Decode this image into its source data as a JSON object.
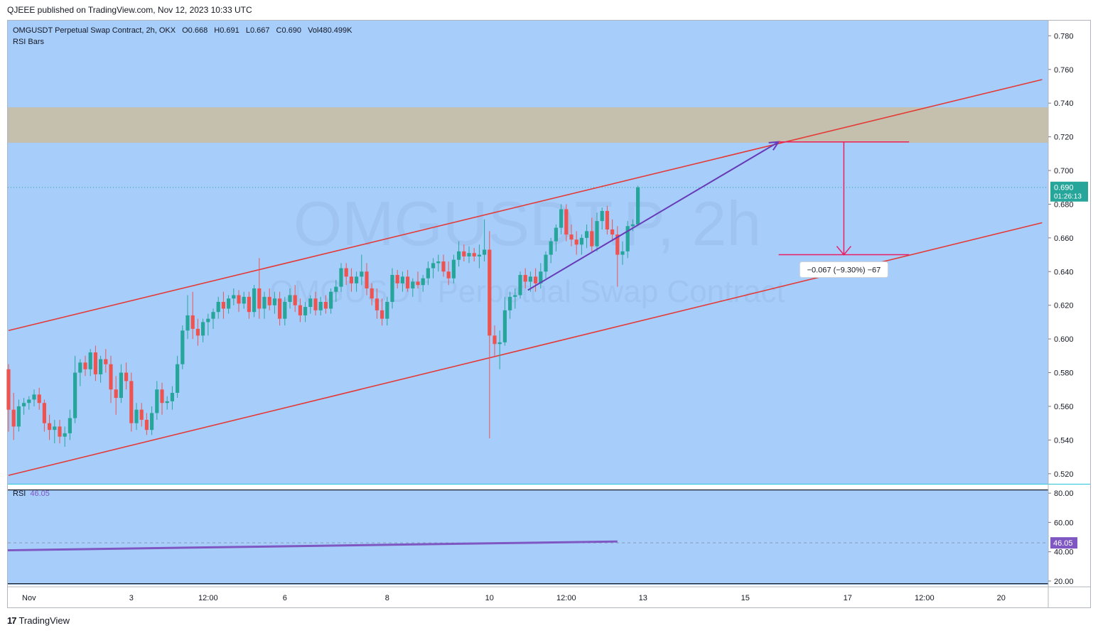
{
  "header": {
    "published": "QJEEE published on TradingView.com, Nov 12, 2023 10:33 UTC"
  },
  "legend": {
    "symbol": "OMGUSDT Perpetual Swap Contract, 2h, OKX",
    "open": "O0.668",
    "high": "H0.691",
    "low": "L0.667",
    "close": "C0.690",
    "volume": "Vol480.499K",
    "indicator": "RSI Bars"
  },
  "watermark": {
    "line1": "OMGUSDT.P, 2h",
    "line2": "OMGUSDT Perpetual Swap Contract"
  },
  "price_badge": {
    "price": "0.690",
    "countdown": "01:26:13"
  },
  "measure_label": "−0.067 (−9.30%) −67",
  "rsi": {
    "label": "RSI",
    "value": "46.05",
    "badge": "46.05"
  },
  "footer": {
    "brand": "TradingView"
  },
  "colors": {
    "background": "#a7cdfb",
    "zone": "#c5bfad",
    "up": "#26a69a",
    "down": "#ef5350",
    "channel": "#e53935",
    "arrow": "#673ab7",
    "measure": "#e91e63",
    "rsi": "#7e57c2"
  },
  "chart_data": {
    "type": "candlestick",
    "price_axis": {
      "ticks": [
        "0.780",
        "0.760",
        "0.740",
        "0.720",
        "0.700",
        "0.680",
        "0.660",
        "0.640",
        "0.620",
        "0.600",
        "0.580",
        "0.560",
        "0.540",
        "0.520"
      ],
      "range": [
        0.514,
        0.789
      ]
    },
    "rsi_axis": {
      "ticks": [
        "80.00",
        "60.00",
        "40.00",
        "20.00"
      ],
      "range": [
        18,
        82
      ]
    },
    "time_axis": {
      "ticks": [
        {
          "label": "Nov",
          "i": 4
        },
        {
          "label": "3",
          "i": 24
        },
        {
          "label": "12:00",
          "i": 39
        },
        {
          "label": "6",
          "i": 54
        },
        {
          "label": "8",
          "i": 74
        },
        {
          "label": "10",
          "i": 94
        },
        {
          "label": "12:00",
          "i": 109
        },
        {
          "label": "13",
          "i": 124
        },
        {
          "label": "15",
          "i": 144
        },
        {
          "label": "17",
          "i": 164
        },
        {
          "label": "12:00",
          "i": 179
        },
        {
          "label": "20",
          "i": 194
        }
      ]
    },
    "supply_zone": [
      0.7165,
      0.7375
    ],
    "last_price": 0.69,
    "channel_upper": [
      [
        0,
        0.605
      ],
      [
        202,
        0.754
      ]
    ],
    "channel_lower": [
      [
        0,
        0.519
      ],
      [
        202,
        0.669
      ]
    ],
    "rising_arrow": [
      [
        101.5,
        0.629
      ],
      [
        150.5,
        0.717
      ]
    ],
    "measure": {
      "start": [
        150.5,
        0.717
      ],
      "end": [
        150.5,
        0.65
      ],
      "x_to": 176
    },
    "rsi_line": [
      [
        0,
        41.0
      ],
      [
        119,
        47.0
      ]
    ],
    "rsi_last": 46.05,
    "candles": [
      [
        0.582,
        0.585,
        0.545,
        0.558
      ],
      [
        0.558,
        0.568,
        0.54,
        0.548
      ],
      [
        0.548,
        0.564,
        0.545,
        0.56
      ],
      [
        0.56,
        0.565,
        0.555,
        0.562
      ],
      [
        0.562,
        0.566,
        0.558,
        0.564
      ],
      [
        0.564,
        0.57,
        0.56,
        0.567
      ],
      [
        0.567,
        0.571,
        0.558,
        0.562
      ],
      [
        0.562,
        0.564,
        0.545,
        0.55
      ],
      [
        0.55,
        0.555,
        0.54,
        0.546
      ],
      [
        0.546,
        0.552,
        0.538,
        0.548
      ],
      [
        0.548,
        0.552,
        0.538,
        0.542
      ],
      [
        0.542,
        0.548,
        0.536,
        0.544
      ],
      [
        0.544,
        0.558,
        0.54,
        0.553
      ],
      [
        0.553,
        0.59,
        0.55,
        0.58
      ],
      [
        0.58,
        0.588,
        0.572,
        0.586
      ],
      [
        0.586,
        0.59,
        0.578,
        0.582
      ],
      [
        0.582,
        0.594,
        0.578,
        0.592
      ],
      [
        0.592,
        0.596,
        0.575,
        0.579
      ],
      [
        0.579,
        0.59,
        0.574,
        0.588
      ],
      [
        0.588,
        0.594,
        0.58,
        0.585
      ],
      [
        0.585,
        0.59,
        0.562,
        0.57
      ],
      [
        0.57,
        0.578,
        0.555,
        0.565
      ],
      [
        0.565,
        0.585,
        0.562,
        0.58
      ],
      [
        0.58,
        0.586,
        0.57,
        0.575
      ],
      [
        0.575,
        0.58,
        0.545,
        0.55
      ],
      [
        0.55,
        0.562,
        0.546,
        0.558
      ],
      [
        0.558,
        0.562,
        0.548,
        0.552
      ],
      [
        0.552,
        0.556,
        0.543,
        0.546
      ],
      [
        0.546,
        0.56,
        0.543,
        0.556
      ],
      [
        0.556,
        0.575,
        0.552,
        0.57
      ],
      [
        0.57,
        0.574,
        0.555,
        0.562
      ],
      [
        0.562,
        0.566,
        0.558,
        0.563
      ],
      [
        0.563,
        0.572,
        0.558,
        0.568
      ],
      [
        0.568,
        0.59,
        0.565,
        0.585
      ],
      [
        0.585,
        0.608,
        0.582,
        0.605
      ],
      [
        0.605,
        0.626,
        0.6,
        0.614
      ],
      [
        0.614,
        0.628,
        0.6,
        0.606
      ],
      [
        0.606,
        0.612,
        0.596,
        0.602
      ],
      [
        0.602,
        0.612,
        0.598,
        0.61
      ],
      [
        0.61,
        0.615,
        0.602,
        0.612
      ],
      [
        0.612,
        0.618,
        0.606,
        0.616
      ],
      [
        0.616,
        0.625,
        0.612,
        0.622
      ],
      [
        0.622,
        0.628,
        0.612,
        0.618
      ],
      [
        0.618,
        0.626,
        0.615,
        0.624
      ],
      [
        0.624,
        0.63,
        0.62,
        0.626
      ],
      [
        0.626,
        0.629,
        0.616,
        0.621
      ],
      [
        0.621,
        0.628,
        0.618,
        0.625
      ],
      [
        0.625,
        0.628,
        0.612,
        0.616
      ],
      [
        0.616,
        0.632,
        0.613,
        0.63
      ],
      [
        0.63,
        0.648,
        0.612,
        0.618
      ],
      [
        0.618,
        0.628,
        0.612,
        0.625
      ],
      [
        0.625,
        0.63,
        0.617,
        0.62
      ],
      [
        0.62,
        0.628,
        0.615,
        0.624
      ],
      [
        0.624,
        0.628,
        0.608,
        0.612
      ],
      [
        0.612,
        0.625,
        0.608,
        0.622
      ],
      [
        0.622,
        0.63,
        0.618,
        0.626
      ],
      [
        0.626,
        0.632,
        0.616,
        0.62
      ],
      [
        0.62,
        0.624,
        0.61,
        0.614
      ],
      [
        0.614,
        0.622,
        0.61,
        0.619
      ],
      [
        0.619,
        0.626,
        0.615,
        0.624
      ],
      [
        0.624,
        0.628,
        0.614,
        0.617
      ],
      [
        0.617,
        0.625,
        0.614,
        0.622
      ],
      [
        0.622,
        0.626,
        0.615,
        0.618
      ],
      [
        0.618,
        0.63,
        0.615,
        0.628
      ],
      [
        0.628,
        0.635,
        0.622,
        0.631
      ],
      [
        0.631,
        0.645,
        0.628,
        0.642
      ],
      [
        0.642,
        0.645,
        0.632,
        0.637
      ],
      [
        0.637,
        0.642,
        0.628,
        0.633
      ],
      [
        0.633,
        0.64,
        0.628,
        0.637
      ],
      [
        0.637,
        0.65,
        0.632,
        0.64
      ],
      [
        0.64,
        0.645,
        0.626,
        0.63
      ],
      [
        0.63,
        0.633,
        0.62,
        0.624
      ],
      [
        0.624,
        0.63,
        0.612,
        0.617
      ],
      [
        0.617,
        0.624,
        0.608,
        0.612
      ],
      [
        0.612,
        0.625,
        0.608,
        0.622
      ],
      [
        0.622,
        0.642,
        0.618,
        0.638
      ],
      [
        0.638,
        0.641,
        0.63,
        0.633
      ],
      [
        0.633,
        0.64,
        0.628,
        0.637
      ],
      [
        0.637,
        0.641,
        0.628,
        0.63
      ],
      [
        0.63,
        0.636,
        0.625,
        0.634
      ],
      [
        0.634,
        0.64,
        0.63,
        0.632
      ],
      [
        0.632,
        0.638,
        0.628,
        0.636
      ],
      [
        0.636,
        0.646,
        0.632,
        0.642
      ],
      [
        0.642,
        0.648,
        0.636,
        0.645
      ],
      [
        0.645,
        0.65,
        0.64,
        0.646
      ],
      [
        0.646,
        0.65,
        0.637,
        0.64
      ],
      [
        0.64,
        0.646,
        0.632,
        0.636
      ],
      [
        0.636,
        0.65,
        0.633,
        0.647
      ],
      [
        0.647,
        0.658,
        0.643,
        0.652
      ],
      [
        0.652,
        0.656,
        0.646,
        0.649
      ],
      [
        0.649,
        0.655,
        0.645,
        0.651
      ],
      [
        0.651,
        0.654,
        0.646,
        0.649
      ],
      [
        0.649,
        0.656,
        0.642,
        0.65
      ],
      [
        0.65,
        0.671,
        0.646,
        0.653
      ],
      [
        0.653,
        0.664,
        0.541,
        0.602
      ],
      [
        0.602,
        0.608,
        0.59,
        0.597
      ],
      [
        0.597,
        0.605,
        0.582,
        0.598
      ],
      [
        0.598,
        0.625,
        0.596,
        0.617
      ],
      [
        0.617,
        0.628,
        0.612,
        0.625
      ],
      [
        0.625,
        0.63,
        0.618,
        0.626
      ],
      [
        0.626,
        0.64,
        0.624,
        0.638
      ],
      [
        0.638,
        0.642,
        0.63,
        0.634
      ],
      [
        0.634,
        0.64,
        0.628,
        0.637
      ],
      [
        0.637,
        0.642,
        0.628,
        0.633
      ],
      [
        0.633,
        0.645,
        0.63,
        0.64
      ],
      [
        0.64,
        0.652,
        0.636,
        0.65
      ],
      [
        0.65,
        0.66,
        0.645,
        0.658
      ],
      [
        0.658,
        0.668,
        0.652,
        0.666
      ],
      [
        0.666,
        0.68,
        0.662,
        0.677
      ],
      [
        0.677,
        0.68,
        0.658,
        0.662
      ],
      [
        0.662,
        0.668,
        0.655,
        0.659
      ],
      [
        0.659,
        0.664,
        0.65,
        0.656
      ],
      [
        0.656,
        0.662,
        0.65,
        0.66
      ],
      [
        0.66,
        0.668,
        0.654,
        0.664
      ],
      [
        0.664,
        0.672,
        0.652,
        0.655
      ],
      [
        0.655,
        0.675,
        0.652,
        0.67
      ],
      [
        0.67,
        0.678,
        0.665,
        0.676
      ],
      [
        0.676,
        0.679,
        0.662,
        0.665
      ],
      [
        0.665,
        0.671,
        0.658,
        0.662
      ],
      [
        0.662,
        0.667,
        0.631,
        0.65
      ],
      [
        0.65,
        0.658,
        0.644,
        0.652
      ],
      [
        0.652,
        0.67,
        0.648,
        0.667
      ],
      [
        0.667,
        0.671,
        0.664,
        0.668
      ],
      [
        0.668,
        0.691,
        0.667,
        0.69
      ]
    ]
  }
}
